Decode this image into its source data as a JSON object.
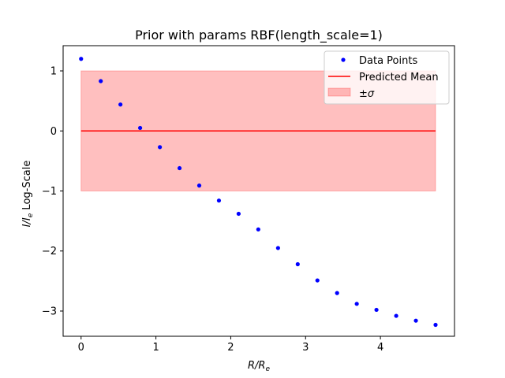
{
  "chart_data": {
    "type": "scatter",
    "title": "Prior with params RBF(length_scale=1)",
    "xlabel": {
      "main": "R/R",
      "sub": "e"
    },
    "ylabel": {
      "main1": "I/I",
      "sub": "e",
      "rest": " Log-Scale"
    },
    "xlim": [
      -0.24,
      4.99
    ],
    "ylim": [
      -3.42,
      1.42
    ],
    "xticks": [
      0,
      1,
      2,
      3,
      4
    ],
    "yticks": [
      1,
      0,
      -1,
      -2,
      -3
    ],
    "xtick_labels": [
      "0",
      "1",
      "2",
      "3",
      "4"
    ],
    "ytick_labels": [
      "1",
      "0",
      "−1",
      "−2",
      "−3"
    ],
    "grid": false,
    "legend_position": "top-right",
    "series": [
      {
        "name": "Data Points",
        "kind": "scatter",
        "color": "#0000ff",
        "x": [
          0.0,
          0.263,
          0.526,
          0.789,
          1.053,
          1.316,
          1.579,
          1.842,
          2.105,
          2.368,
          2.632,
          2.895,
          3.158,
          3.421,
          3.684,
          3.947,
          4.211,
          4.474,
          4.737
        ],
        "y": [
          1.2,
          0.83,
          0.44,
          0.05,
          -0.27,
          -0.62,
          -0.91,
          -1.16,
          -1.38,
          -1.64,
          -1.95,
          -2.22,
          -2.49,
          -2.7,
          -2.88,
          -2.98,
          -3.08,
          -3.16,
          -3.23
        ]
      },
      {
        "name": "Predicted Mean",
        "kind": "line",
        "color": "#ff0000",
        "x": [
          0.0,
          4.737
        ],
        "y": [
          0,
          0
        ]
      },
      {
        "name": "±",
        "name_symbol": "σ",
        "kind": "band",
        "color": "#ff0000",
        "x": [
          0.0,
          4.737
        ],
        "lower": -1,
        "upper": 1
      }
    ]
  }
}
